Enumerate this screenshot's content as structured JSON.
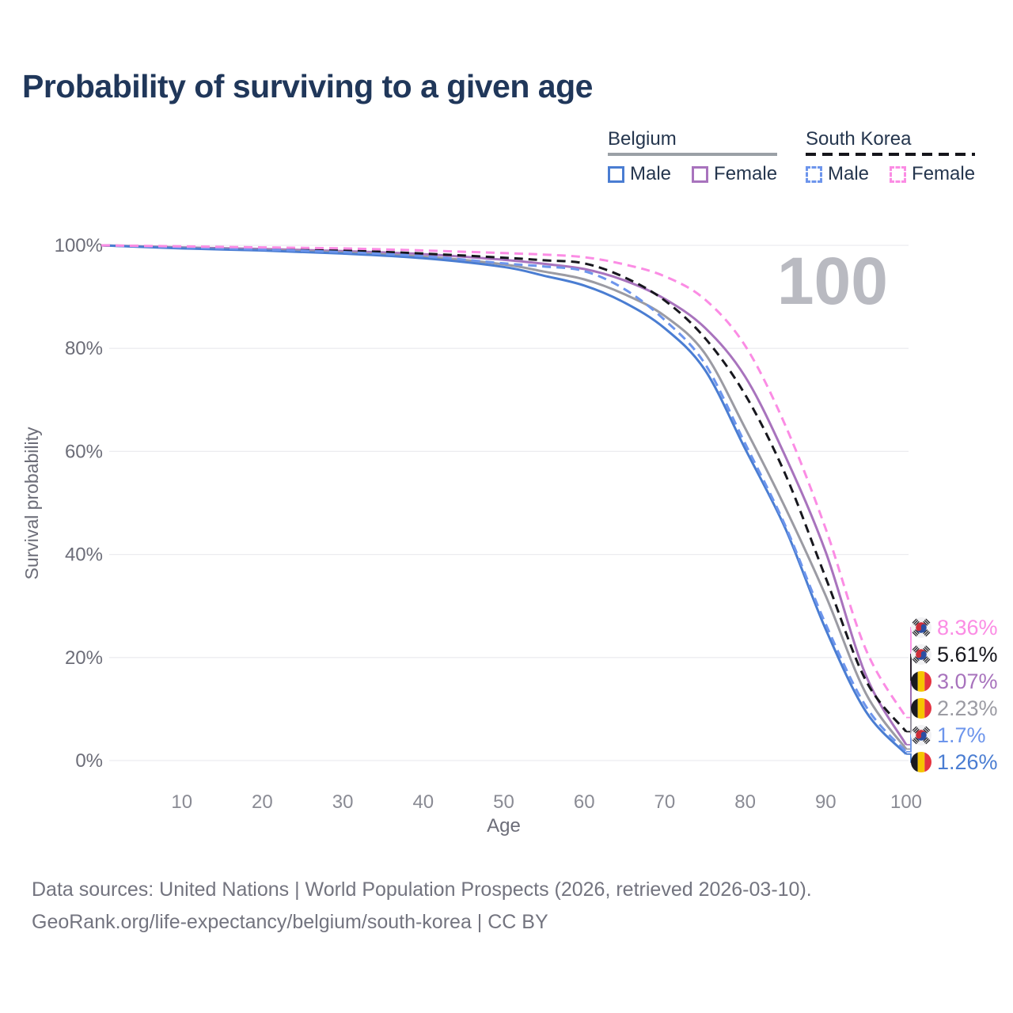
{
  "title": "Probability of surviving to a given age",
  "legend": {
    "groups": [
      {
        "label": "Belgium",
        "line_style": "solid",
        "items": [
          {
            "label": "Male",
            "color": "#4a7dd2",
            "dashed": false
          },
          {
            "label": "Female",
            "color": "#a873bd",
            "dashed": false
          }
        ]
      },
      {
        "label": "South Korea",
        "line_style": "dashed",
        "items": [
          {
            "label": "Male",
            "color": "#6d95ec",
            "dashed": true
          },
          {
            "label": "Female",
            "color": "#fb8ce4",
            "dashed": true
          }
        ]
      }
    ]
  },
  "chart_data": {
    "type": "line",
    "title": "Probability of surviving to a given age",
    "xlabel": "Age",
    "ylabel": "Survival probability",
    "xlim": [
      0,
      100
    ],
    "ylim": [
      0,
      100
    ],
    "grid": true,
    "watermark": "100",
    "x_ticks": [
      {
        "v": 10,
        "label": "10"
      },
      {
        "v": 20,
        "label": "20"
      },
      {
        "v": 30,
        "label": "30"
      },
      {
        "v": 40,
        "label": "40"
      },
      {
        "v": 50,
        "label": "50"
      },
      {
        "v": 60,
        "label": "60"
      },
      {
        "v": 70,
        "label": "70"
      },
      {
        "v": 80,
        "label": "80"
      },
      {
        "v": 90,
        "label": "90"
      },
      {
        "v": 100,
        "label": "100"
      }
    ],
    "y_ticks": [
      {
        "v": 0,
        "label": "0%"
      },
      {
        "v": 20,
        "label": "20%"
      },
      {
        "v": 40,
        "label": "40%"
      },
      {
        "v": 60,
        "label": "60%"
      },
      {
        "v": 80,
        "label": "80%"
      },
      {
        "v": 100,
        "label": "100%"
      }
    ],
    "ages": [
      0,
      10,
      20,
      30,
      40,
      50,
      55,
      60,
      65,
      70,
      75,
      80,
      85,
      90,
      95,
      100
    ],
    "series": [
      {
        "name": "South Korea Female",
        "country": "South Korea",
        "flag": "KR",
        "color": "#fb8ce4",
        "dashed": true,
        "end_label": "8.36%",
        "end_value": 8.36,
        "values": [
          100,
          99.8,
          99.6,
          99.4,
          99.0,
          98.5,
          98.2,
          97.7,
          96.3,
          94.0,
          89.5,
          80.5,
          65.0,
          45.0,
          21.5,
          8.36
        ]
      },
      {
        "name": "South Korea Both sexes",
        "country": "South Korea",
        "flag": "KR",
        "color": "#17171d",
        "dashed": true,
        "end_label": "5.61%",
        "end_value": 5.61,
        "values": [
          100,
          99.7,
          99.4,
          99.0,
          98.4,
          97.6,
          97.1,
          96.5,
          93.8,
          89.3,
          82.0,
          71.0,
          55.5,
          35.5,
          15.5,
          5.61
        ]
      },
      {
        "name": "Belgium Female",
        "country": "Belgium",
        "flag": "BE",
        "color": "#a873bd",
        "dashed": false,
        "end_label": "3.07%",
        "end_value": 3.07,
        "values": [
          100,
          99.6,
          99.3,
          98.9,
          98.3,
          97.2,
          96.4,
          95.4,
          93.2,
          89.6,
          84.0,
          74.5,
          59.0,
          40.5,
          16.5,
          3.07
        ]
      },
      {
        "name": "Belgium Both sexes",
        "country": "Belgium",
        "flag": "BE",
        "color": "#9b9ba3",
        "dashed": false,
        "end_label": "2.23%",
        "end_value": 2.23,
        "values": [
          100,
          99.5,
          99.1,
          98.6,
          97.8,
          96.3,
          94.9,
          93.4,
          90.5,
          86.3,
          79.0,
          64.5,
          49.0,
          32.0,
          13.0,
          2.23
        ]
      },
      {
        "name": "South Korea Male",
        "country": "South Korea",
        "flag": "KR",
        "color": "#6d95ec",
        "dashed": true,
        "end_label": "1.7%",
        "end_value": 1.7,
        "values": [
          100,
          99.6,
          99.2,
          98.7,
          97.9,
          96.5,
          95.9,
          95.0,
          91.5,
          85.5,
          77.0,
          61.5,
          45.5,
          26.5,
          10.5,
          1.7
        ]
      },
      {
        "name": "Belgium Male",
        "country": "Belgium",
        "flag": "BE",
        "color": "#4a7dd2",
        "dashed": false,
        "end_label": "1.26%",
        "end_value": 1.26,
        "values": [
          100,
          99.4,
          99.0,
          98.4,
          97.5,
          95.8,
          94.1,
          92.2,
          88.9,
          83.9,
          75.8,
          60.5,
          45.0,
          25.5,
          9.5,
          1.26
        ]
      }
    ]
  },
  "footer": {
    "line1": "Data sources: United Nations | World Population Prospects (2026, retrieved 2026-03-10).",
    "line2": "GeoRank.org/life-expectancy/belgium/south-korea | CC BY"
  }
}
